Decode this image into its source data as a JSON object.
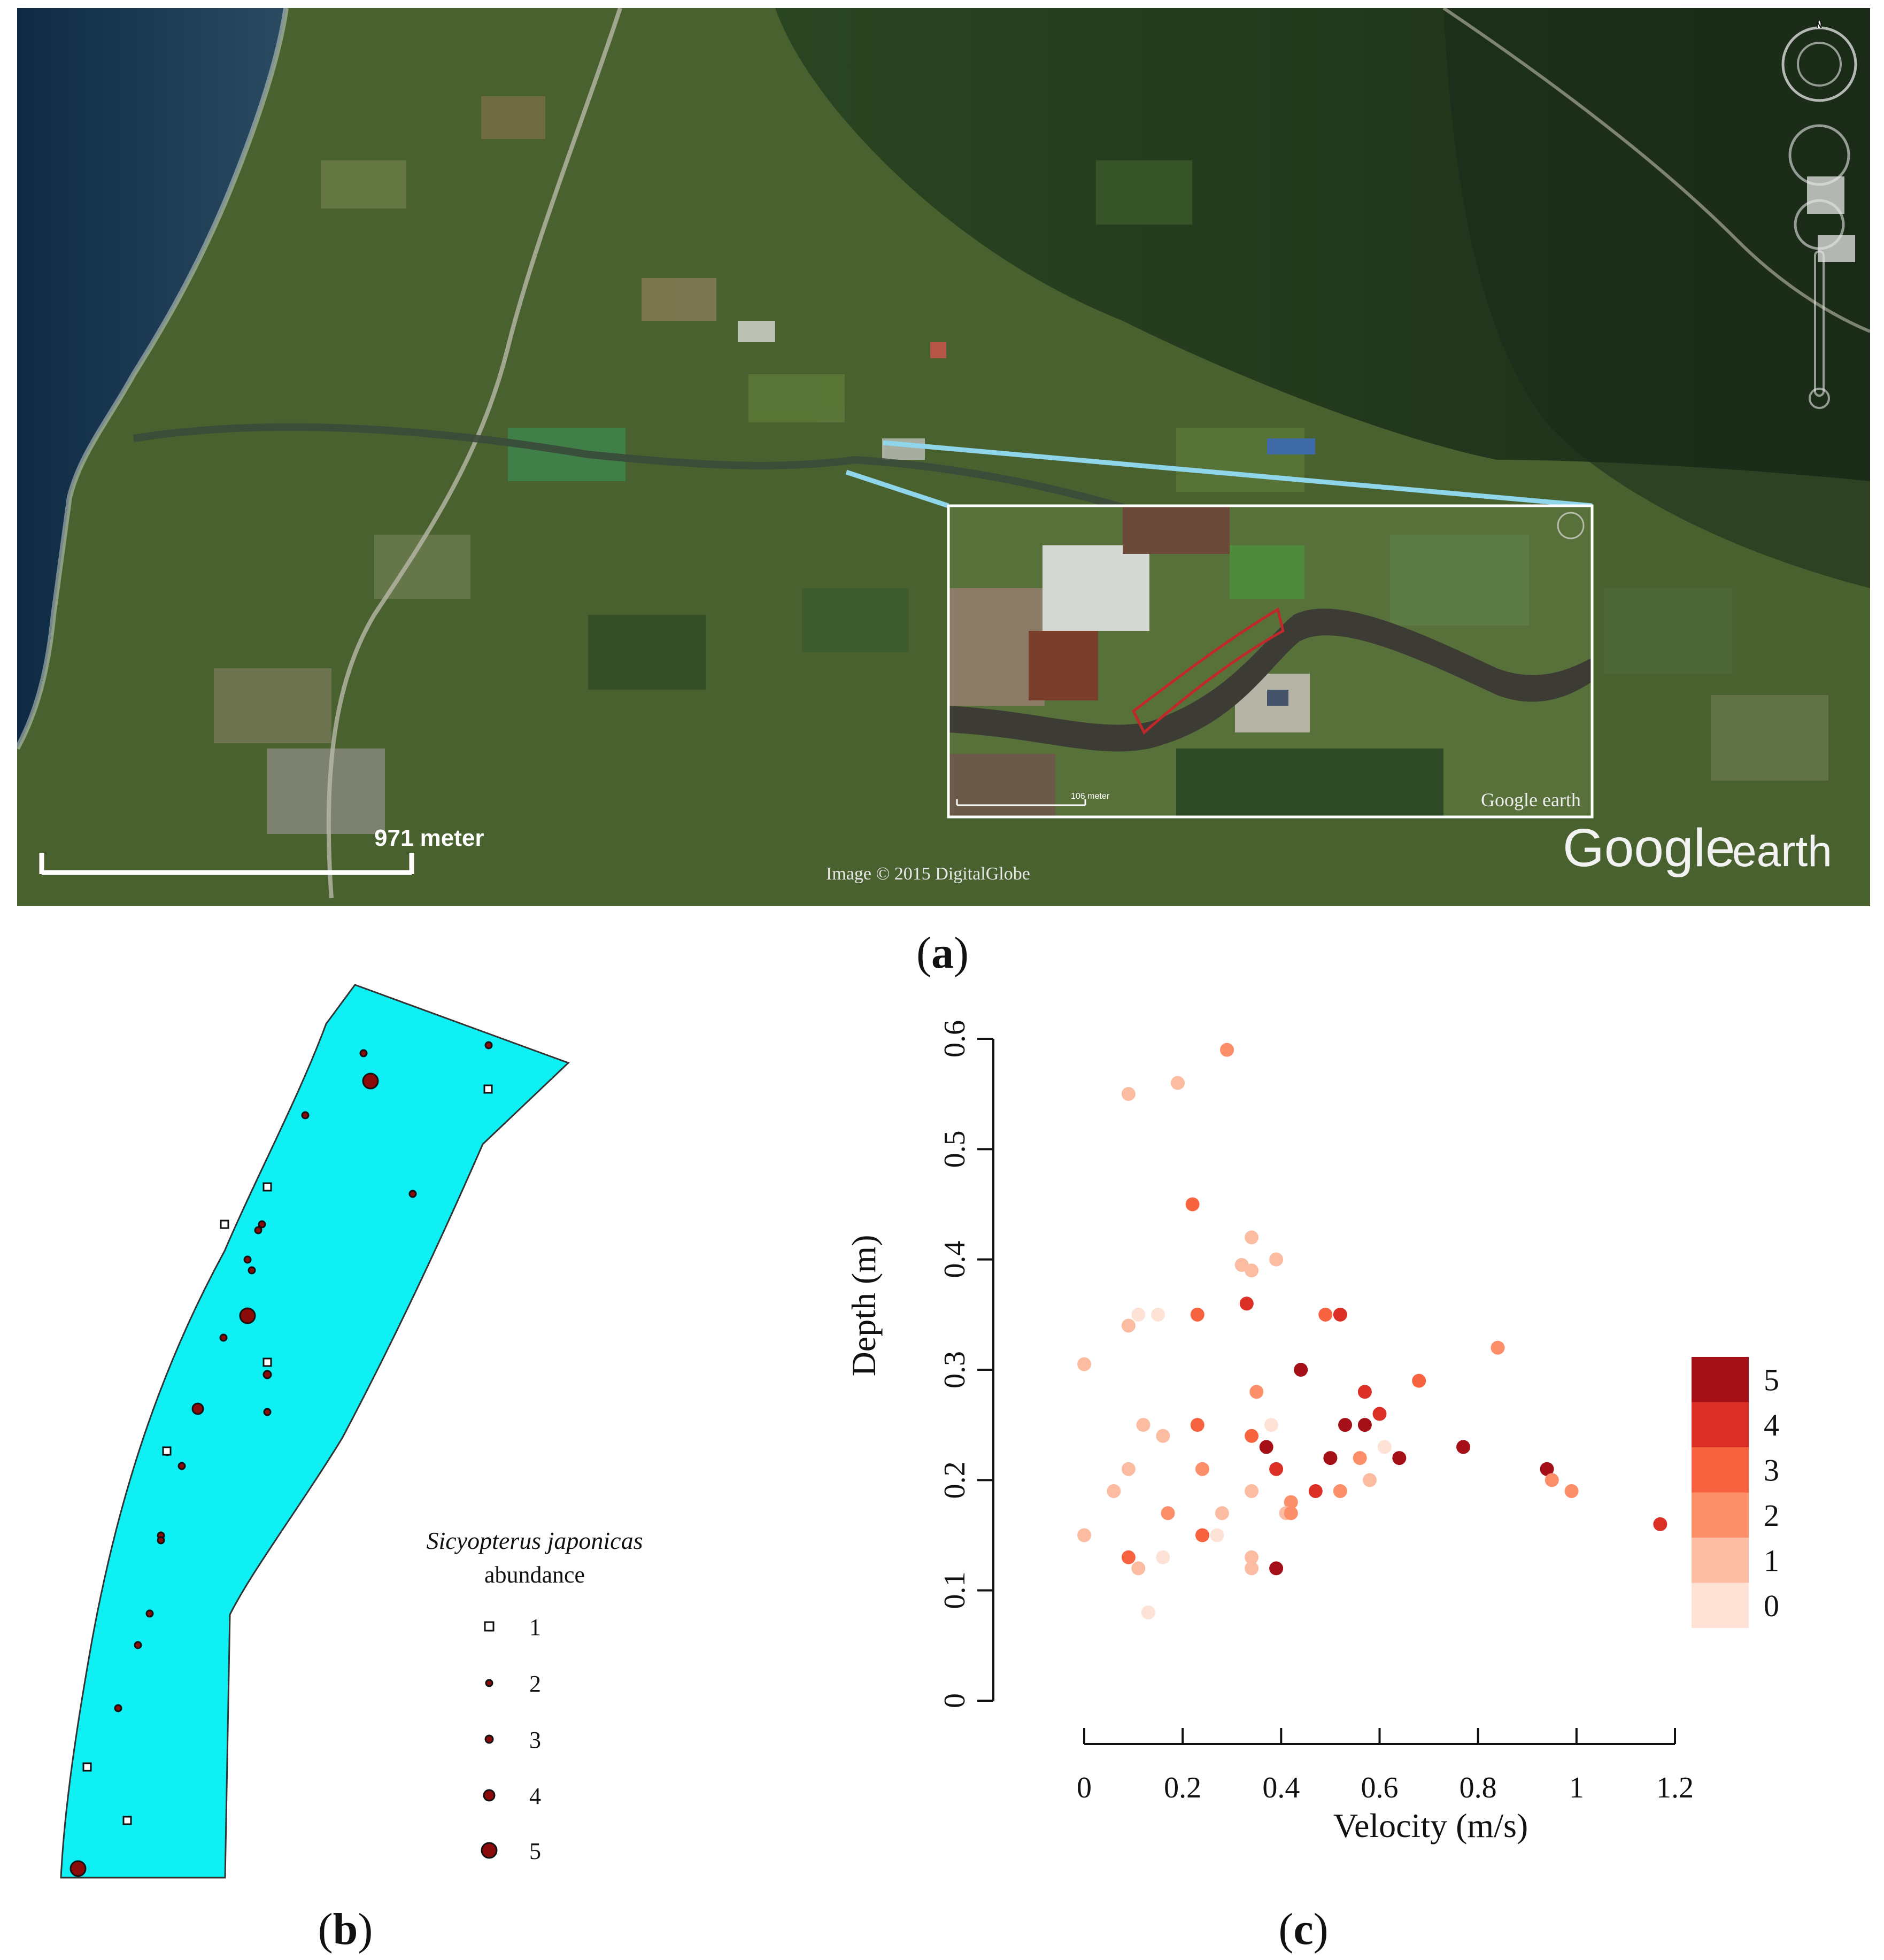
{
  "panels": {
    "a": {
      "label_letter": "a"
    },
    "b": {
      "label_letter": "b"
    },
    "c": {
      "label_letter": "c"
    }
  },
  "map_overlay": {
    "scale_bar_label": "971 meter",
    "inset_scale_label": "106 meter",
    "imagery_credit": "Image © 2015 DigitalGlobe",
    "inset_logo": "Google earth",
    "logo_word1": "Google",
    "logo_word2": "earth",
    "compass_letter": "N",
    "colors": {
      "sea": "#1f3d55",
      "land": "#4a6330",
      "forest": "#223a1c",
      "connector": "#8fd6ea",
      "inset_border": "#ffffff",
      "study_reach": "#c0282a"
    }
  },
  "reach_map": {
    "fill_color": "#0ff0f4",
    "legend_title_species": "Sicyopterus japonicas",
    "legend_title_rest": "abundance",
    "legend_items": [
      {
        "label": "1",
        "symbol": "open-square"
      },
      {
        "label": "2",
        "symbol": "dot-small"
      },
      {
        "label": "3",
        "symbol": "dot-medium"
      },
      {
        "label": "4",
        "symbol": "dot-large"
      },
      {
        "label": "5",
        "symbol": "dot-xlarge"
      }
    ],
    "points_note_abundance": [
      5,
      1,
      1,
      2,
      2,
      2,
      2,
      2,
      2,
      2,
      1,
      4,
      2,
      1,
      3,
      2,
      5,
      1,
      2,
      2,
      2,
      2,
      1,
      2,
      2,
      5,
      1,
      2,
      2
    ]
  },
  "chart_data": {
    "type": "scatter",
    "xlabel": "Velocity (m/s)",
    "ylabel": "Depth (m)",
    "xlim": [
      0,
      1.2
    ],
    "ylim": [
      0,
      0.6
    ],
    "xticks": [
      "0",
      "0.2",
      "0.4",
      "0.6",
      "0.8",
      "1",
      "1.2"
    ],
    "yticks": [
      "0",
      "0.1",
      "0.2",
      "0.3",
      "0.4",
      "0.5",
      "0.6"
    ],
    "grid": false,
    "legend_placement": "right",
    "legend": [
      {
        "label": "5",
        "color": "#a51018"
      },
      {
        "label": "4",
        "color": "#dc2f26"
      },
      {
        "label": "3",
        "color": "#f8633f"
      },
      {
        "label": "2",
        "color": "#fc8e6a"
      },
      {
        "label": "1",
        "color": "#fcbca2"
      },
      {
        "label": "0",
        "color": "#fee2d6"
      }
    ],
    "points": [
      {
        "x": 0.29,
        "y": 0.59,
        "v": 2
      },
      {
        "x": 0.19,
        "y": 0.56,
        "v": 1
      },
      {
        "x": 0.09,
        "y": 0.55,
        "v": 1
      },
      {
        "x": 0.22,
        "y": 0.45,
        "v": 3
      },
      {
        "x": 0.34,
        "y": 0.42,
        "v": 1
      },
      {
        "x": 0.39,
        "y": 0.4,
        "v": 1
      },
      {
        "x": 0.32,
        "y": 0.395,
        "v": 1
      },
      {
        "x": 0.34,
        "y": 0.39,
        "v": 1
      },
      {
        "x": 0.33,
        "y": 0.36,
        "v": 4
      },
      {
        "x": 0.23,
        "y": 0.35,
        "v": 3
      },
      {
        "x": 0.11,
        "y": 0.35,
        "v": 0
      },
      {
        "x": 0.15,
        "y": 0.35,
        "v": 0
      },
      {
        "x": 0.09,
        "y": 0.34,
        "v": 1
      },
      {
        "x": 0.49,
        "y": 0.35,
        "v": 3
      },
      {
        "x": 0.52,
        "y": 0.35,
        "v": 4
      },
      {
        "x": 0.84,
        "y": 0.32,
        "v": 2
      },
      {
        "x": 0.0,
        "y": 0.305,
        "v": 1
      },
      {
        "x": 0.44,
        "y": 0.3,
        "v": 5
      },
      {
        "x": 0.68,
        "y": 0.29,
        "v": 3
      },
      {
        "x": 0.35,
        "y": 0.28,
        "v": 2
      },
      {
        "x": 0.57,
        "y": 0.28,
        "v": 4
      },
      {
        "x": 0.6,
        "y": 0.26,
        "v": 4
      },
      {
        "x": 0.23,
        "y": 0.25,
        "v": 3
      },
      {
        "x": 0.12,
        "y": 0.25,
        "v": 1
      },
      {
        "x": 0.38,
        "y": 0.25,
        "v": 0
      },
      {
        "x": 0.53,
        "y": 0.25,
        "v": 5
      },
      {
        "x": 0.57,
        "y": 0.25,
        "v": 5
      },
      {
        "x": 0.16,
        "y": 0.24,
        "v": 1
      },
      {
        "x": 0.34,
        "y": 0.24,
        "v": 3
      },
      {
        "x": 0.37,
        "y": 0.23,
        "v": 5
      },
      {
        "x": 0.61,
        "y": 0.23,
        "v": 0
      },
      {
        "x": 0.77,
        "y": 0.23,
        "v": 5
      },
      {
        "x": 0.5,
        "y": 0.22,
        "v": 5
      },
      {
        "x": 0.64,
        "y": 0.22,
        "v": 5
      },
      {
        "x": 0.56,
        "y": 0.22,
        "v": 2
      },
      {
        "x": 0.09,
        "y": 0.21,
        "v": 1
      },
      {
        "x": 0.24,
        "y": 0.21,
        "v": 2
      },
      {
        "x": 0.39,
        "y": 0.21,
        "v": 4
      },
      {
        "x": 0.94,
        "y": 0.21,
        "v": 5
      },
      {
        "x": 0.95,
        "y": 0.2,
        "v": 2
      },
      {
        "x": 0.58,
        "y": 0.2,
        "v": 1
      },
      {
        "x": 0.06,
        "y": 0.19,
        "v": 1
      },
      {
        "x": 0.34,
        "y": 0.19,
        "v": 1
      },
      {
        "x": 0.47,
        "y": 0.19,
        "v": 4
      },
      {
        "x": 0.52,
        "y": 0.19,
        "v": 2
      },
      {
        "x": 0.99,
        "y": 0.19,
        "v": 2
      },
      {
        "x": 0.42,
        "y": 0.18,
        "v": 2
      },
      {
        "x": 0.17,
        "y": 0.17,
        "v": 2
      },
      {
        "x": 0.28,
        "y": 0.17,
        "v": 1
      },
      {
        "x": 0.41,
        "y": 0.17,
        "v": 1
      },
      {
        "x": 0.42,
        "y": 0.17,
        "v": 2
      },
      {
        "x": 1.17,
        "y": 0.16,
        "v": 4
      },
      {
        "x": 0.0,
        "y": 0.15,
        "v": 1
      },
      {
        "x": 0.24,
        "y": 0.15,
        "v": 3
      },
      {
        "x": 0.27,
        "y": 0.15,
        "v": 0
      },
      {
        "x": 0.09,
        "y": 0.13,
        "v": 3
      },
      {
        "x": 0.16,
        "y": 0.13,
        "v": 0
      },
      {
        "x": 0.34,
        "y": 0.13,
        "v": 1
      },
      {
        "x": 0.11,
        "y": 0.12,
        "v": 1
      },
      {
        "x": 0.34,
        "y": 0.12,
        "v": 1
      },
      {
        "x": 0.39,
        "y": 0.12,
        "v": 5
      },
      {
        "x": 0.13,
        "y": 0.08,
        "v": 0
      }
    ]
  }
}
